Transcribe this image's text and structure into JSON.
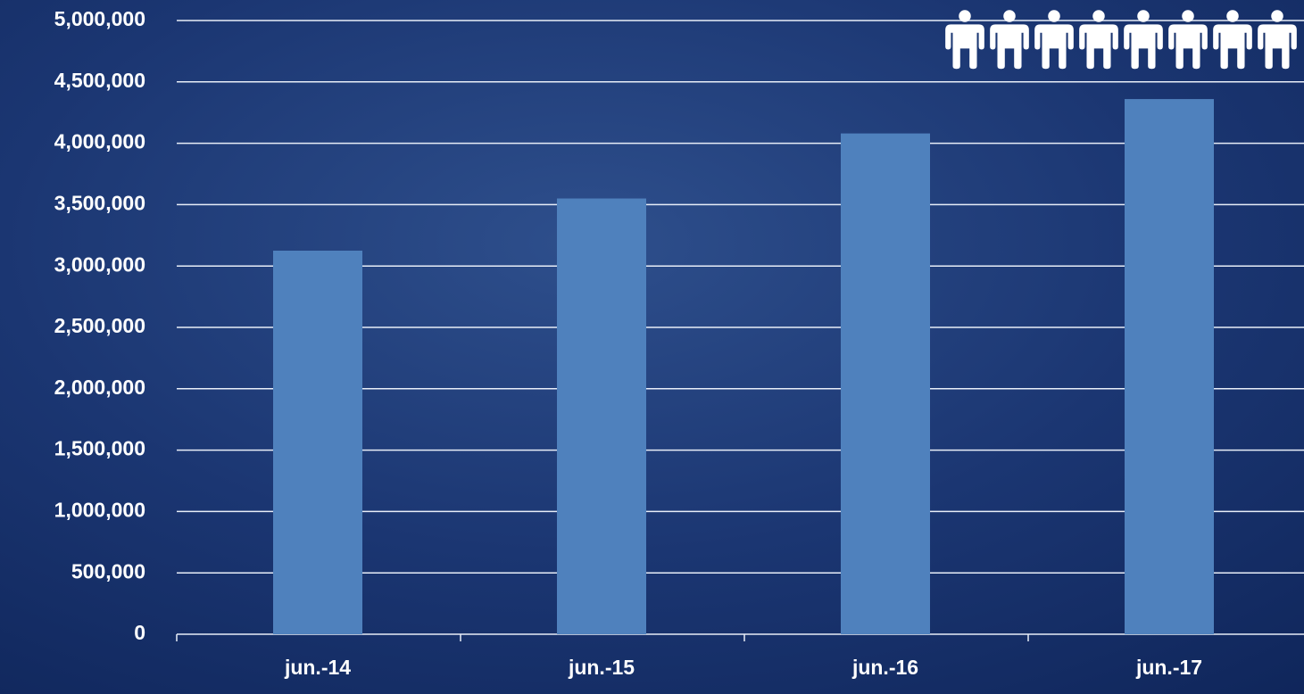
{
  "chart_data": {
    "type": "bar",
    "categories": [
      "jun.-14",
      "jun.-15",
      "jun.-16",
      "jun.-17"
    ],
    "values": [
      3125000,
      3550000,
      4080000,
      4360000
    ],
    "color": "#4f81bd",
    "ylim": [
      0,
      5000000
    ],
    "yticks": [
      0,
      {
        "value": 500000,
        "label": "500,000"
      },
      {
        "value": 1000000,
        "label": "1,000,000"
      },
      {
        "value": 1500000,
        "label": "1,500,000"
      },
      {
        "value": 2000000,
        "label": "2,000,000"
      },
      {
        "value": 2500000,
        "label": "2,500,000"
      },
      {
        "value": 3000000,
        "label": "3,000,000"
      },
      {
        "value": 3500000,
        "label": "3,500,000"
      },
      {
        "value": 4000000,
        "label": "4,000,000"
      },
      {
        "value": 4500000,
        "label": "4,500,000"
      },
      {
        "value": 5000000,
        "label": "5,000,000"
      }
    ],
    "grid": true
  }
}
